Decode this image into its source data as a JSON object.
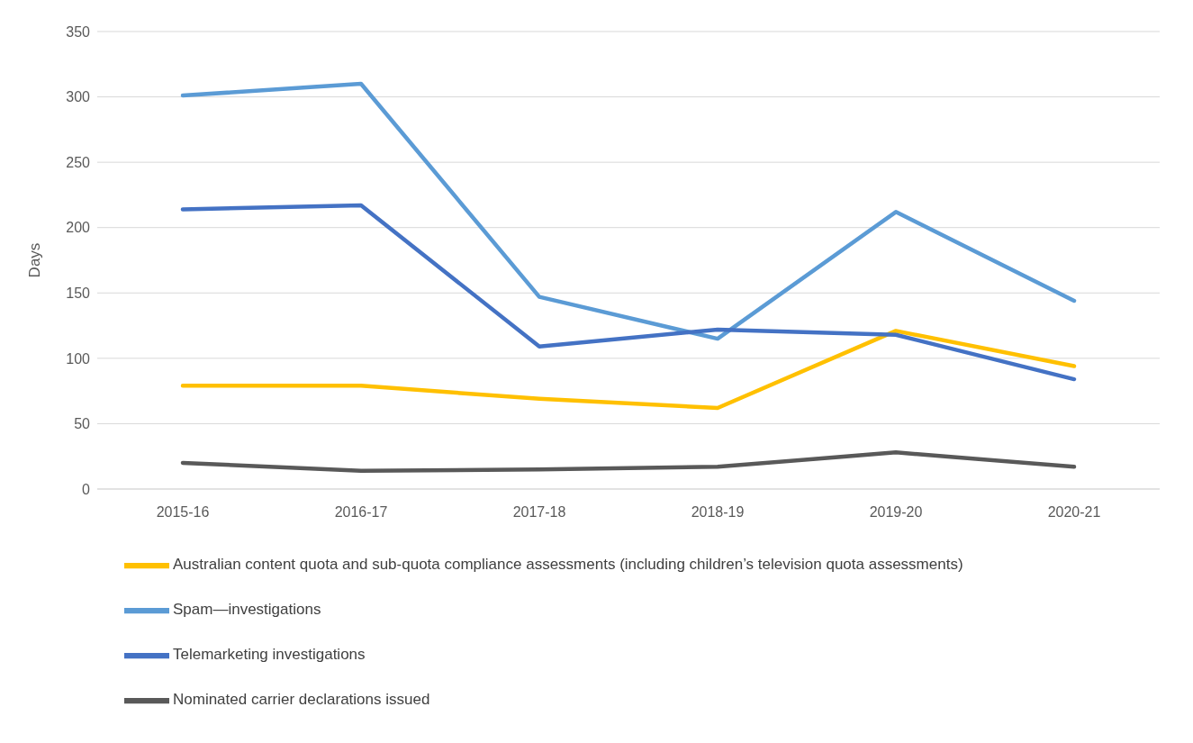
{
  "chart_data": {
    "type": "line",
    "ylabel": "Days",
    "categories": [
      "2015-16",
      "2016-17",
      "2017-18",
      "2018-19",
      "2019-20",
      "2020-21"
    ],
    "series": [
      {
        "name": "Australian content quota and sub-quota compliance assessments (including children’s television quota assessments)",
        "color": "#ffc000",
        "values": [
          79,
          79,
          69,
          62,
          121,
          94
        ]
      },
      {
        "name": "Spam—investigations",
        "color": "#5b9bd5",
        "values": [
          301,
          310,
          147,
          115,
          212,
          144
        ]
      },
      {
        "name": "Telemarketing investigations",
        "color": "#4472c4",
        "values": [
          214,
          217,
          109,
          122,
          118,
          84
        ]
      },
      {
        "name": "Nominated carrier declarations issued",
        "color": "#595959",
        "values": [
          20,
          14,
          15,
          17,
          28,
          17
        ]
      }
    ],
    "ylim": [
      0,
      350
    ],
    "yticks": [
      0,
      50,
      100,
      150,
      200,
      250,
      300,
      350
    ],
    "grid": "y",
    "legend": "bottom",
    "marker": "none",
    "line_style": "solid"
  }
}
